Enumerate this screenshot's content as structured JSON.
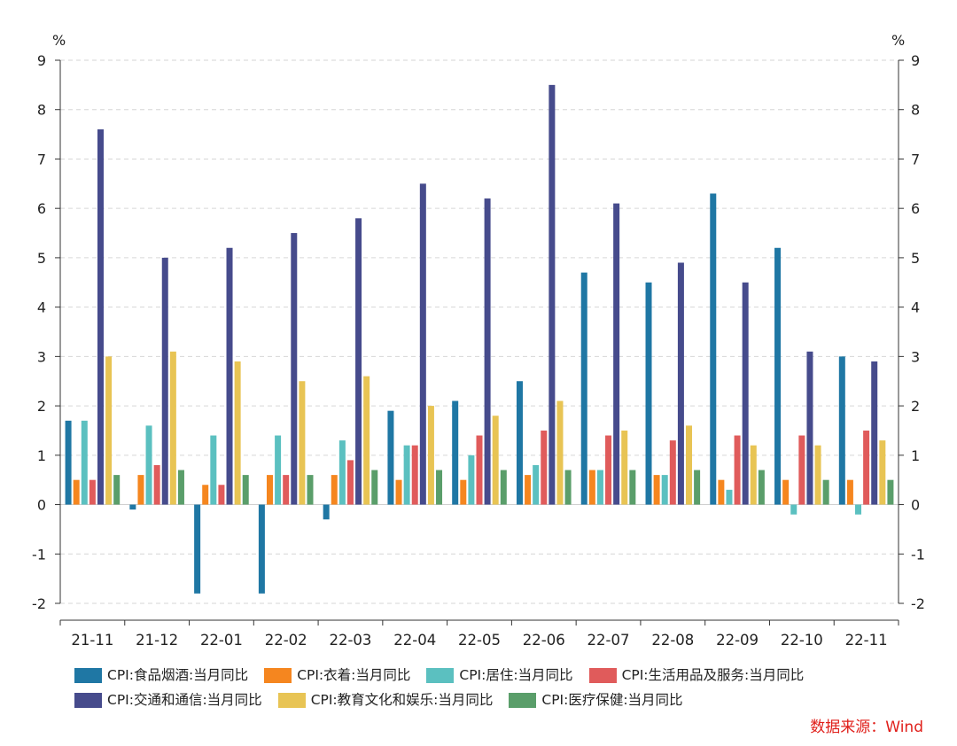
{
  "chart_data": {
    "type": "bar",
    "categories": [
      "21-11",
      "21-12",
      "22-01",
      "22-02",
      "22-03",
      "22-04",
      "22-05",
      "22-06",
      "22-07",
      "22-08",
      "22-09",
      "22-10",
      "22-11"
    ],
    "series": [
      {
        "name": "CPI:食品烟酒:当月同比",
        "color": "#1f77a4",
        "values": [
          1.7,
          -0.1,
          -1.8,
          -1.8,
          -0.3,
          1.9,
          2.1,
          2.5,
          4.7,
          4.5,
          6.3,
          5.2,
          3.0
        ]
      },
      {
        "name": "CPI:衣着:当月同比",
        "color": "#f5861f",
        "values": [
          0.5,
          0.6,
          0.4,
          0.6,
          0.6,
          0.5,
          0.5,
          0.6,
          0.7,
          0.6,
          0.5,
          0.5,
          0.5
        ]
      },
      {
        "name": "CPI:居住:当月同比",
        "color": "#5bc0c0",
        "values": [
          1.7,
          1.6,
          1.4,
          1.4,
          1.3,
          1.2,
          1.0,
          0.8,
          0.7,
          0.6,
          0.3,
          -0.2,
          -0.2
        ]
      },
      {
        "name": "CPI:生活用品及服务:当月同比",
        "color": "#e05b5b",
        "values": [
          0.5,
          0.8,
          0.4,
          0.6,
          0.9,
          1.2,
          1.4,
          1.5,
          1.4,
          1.3,
          1.4,
          1.4,
          1.5
        ]
      },
      {
        "name": "CPI:交通和通信:当月同比",
        "color": "#464b8c",
        "values": [
          7.6,
          5.0,
          5.2,
          5.5,
          5.8,
          6.5,
          6.2,
          8.5,
          6.1,
          4.9,
          4.5,
          3.1,
          2.9
        ]
      },
      {
        "name": "CPI:教育文化和娱乐:当月同比",
        "color": "#e8c454",
        "values": [
          3.0,
          3.1,
          2.9,
          2.5,
          2.6,
          2.0,
          1.8,
          2.1,
          1.5,
          1.6,
          1.2,
          1.2,
          1.3
        ]
      },
      {
        "name": "CPI:医疗保健:当月同比",
        "color": "#5a9e6a",
        "values": [
          0.6,
          0.7,
          0.6,
          0.6,
          0.7,
          0.7,
          0.7,
          0.7,
          0.7,
          0.7,
          0.7,
          0.5,
          0.5
        ]
      }
    ],
    "ylim": [
      -2,
      9
    ],
    "yticks": [
      -2,
      -1,
      0,
      1,
      2,
      3,
      4,
      5,
      6,
      7,
      8,
      9
    ],
    "yunit_left": "%",
    "yunit_right": "%",
    "grid": true,
    "legend_position": "bottom"
  },
  "source": "数据来源：Wind"
}
